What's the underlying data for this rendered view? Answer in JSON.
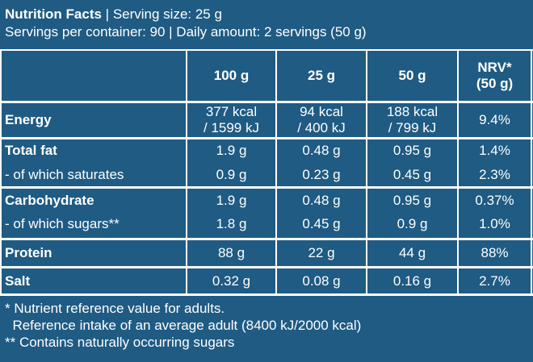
{
  "header": {
    "title": "Nutrition Facts",
    "serving_size": " | Serving size: 25 g",
    "line2": "Servings per container: 90 | Daily amount: 2 servings (50 g)"
  },
  "table": {
    "columns": [
      "100 g",
      "25 g",
      "50 g",
      "NRV*",
      "(50 g)"
    ],
    "rows": [
      {
        "label": "Energy",
        "c1a": "377 kcal",
        "c1b": "/ 1599 kJ",
        "c2a": "94 kcal",
        "c2b": "/ 400 kJ",
        "c3a": "188 kcal",
        "c3b": "/ 799 kJ",
        "nrv": "9.4%"
      },
      {
        "label": "Total fat",
        "c1": "1.9 g",
        "c2": "0.48 g",
        "c3": "0.95 g",
        "nrv": "1.4%"
      },
      {
        "label": "- of which saturates",
        "c1": "0.9 g",
        "c2": "0.23 g",
        "c3": "0.45 g",
        "nrv": "2.3%"
      },
      {
        "label": "Carbohydrate",
        "c1": "1.9 g",
        "c2": "0.48 g",
        "c3": "0.95 g",
        "nrv": "0.37%"
      },
      {
        "label": "- of which sugars**",
        "c1": "1.8 g",
        "c2": "0.45 g",
        "c3": "0.9 g",
        "nrv": "1.0%"
      },
      {
        "label": "Protein",
        "c1": "88 g",
        "c2": "22 g",
        "c3": "44 g",
        "nrv": "88%"
      },
      {
        "label": "Salt",
        "c1": "0.32 g",
        "c2": "0.08 g",
        "c3": "0.16 g",
        "nrv": "2.7%"
      }
    ]
  },
  "footer": {
    "note1": "* Nutrient reference value for adults.",
    "note2": "  Reference intake of an average adult (8400 kJ/2000 kcal)",
    "note3": "** Contains naturally occurring sugars"
  }
}
